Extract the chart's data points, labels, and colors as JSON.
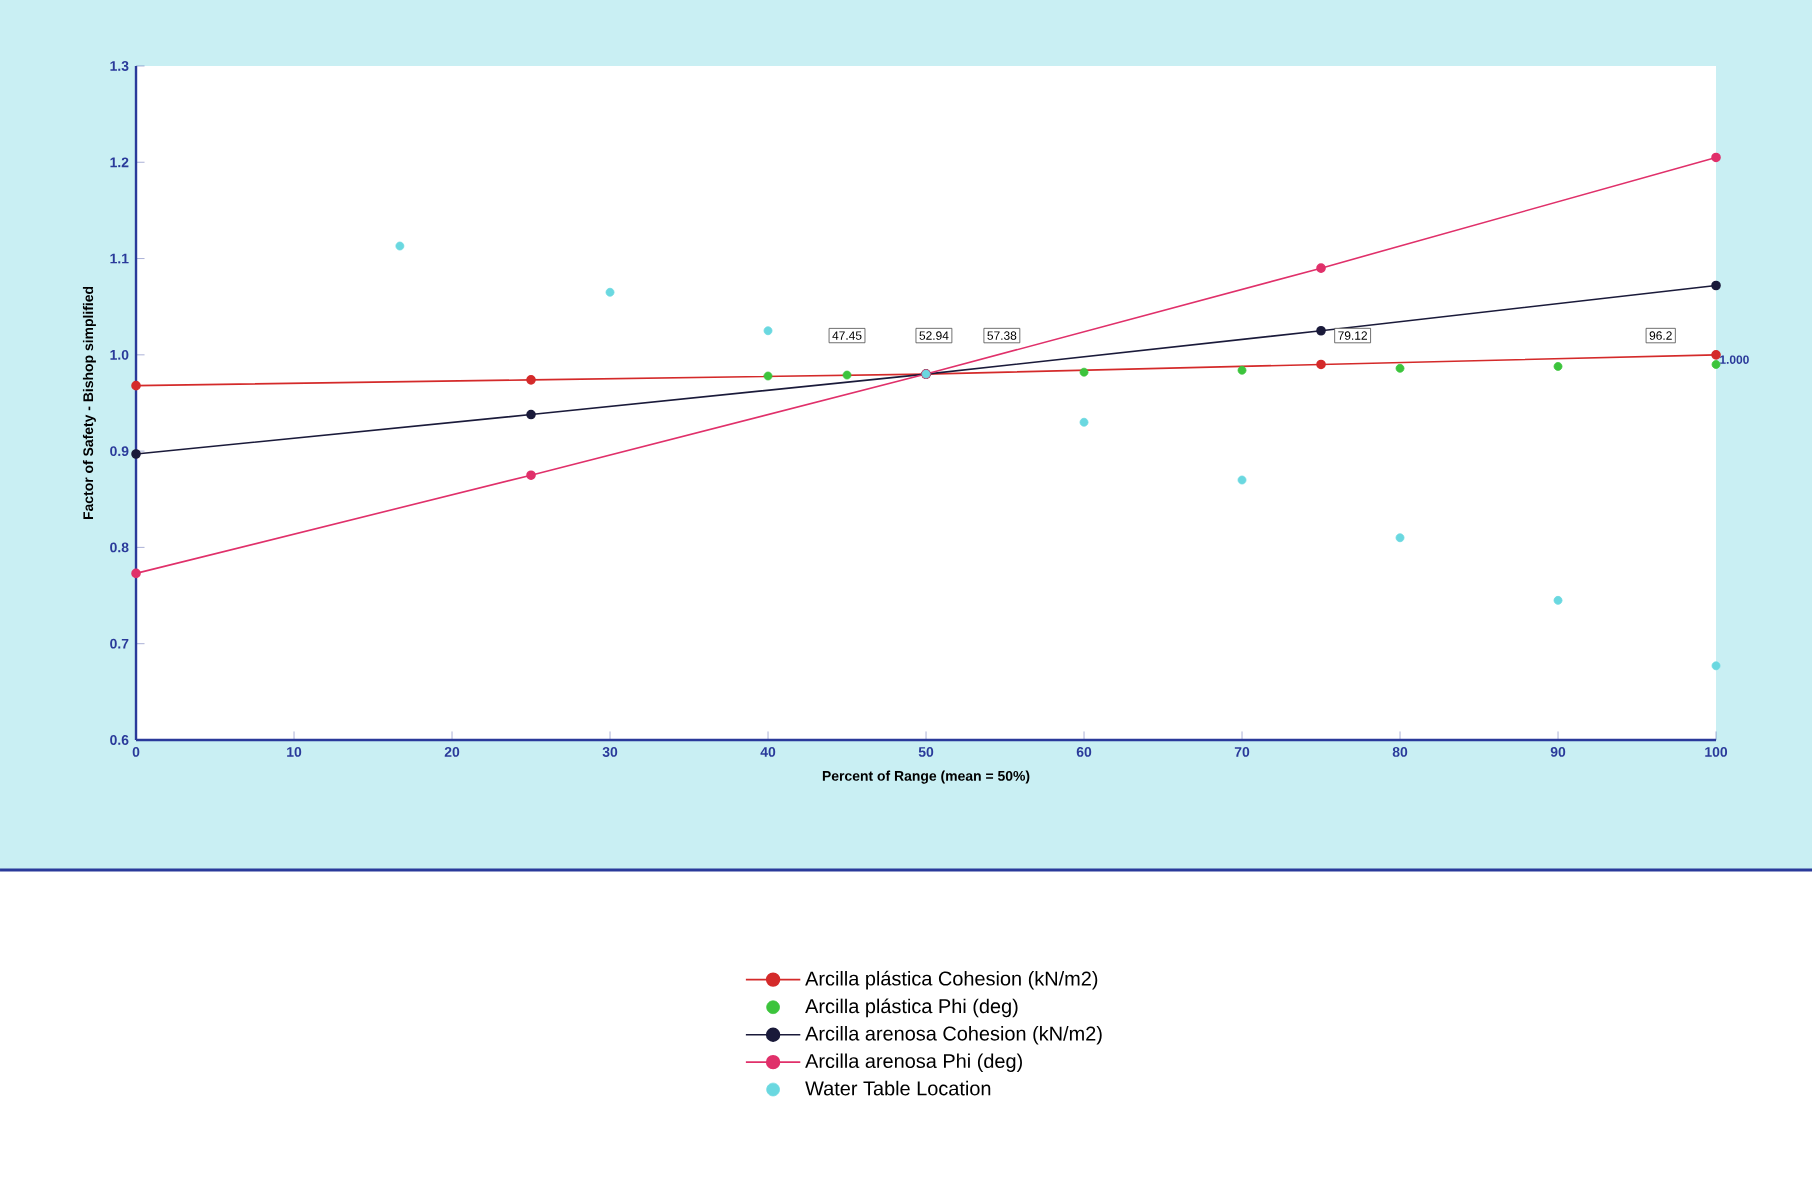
{
  "chart_data": {
    "type": "line",
    "xlabel": "Percent of Range (mean = 50%)",
    "ylabel": "Factor of Safety - Bishop simplified",
    "xlim": [
      0,
      100
    ],
    "xticks": [
      0,
      10,
      20,
      30,
      40,
      50,
      60,
      70,
      80,
      90,
      100
    ],
    "ylim": [
      0.6,
      1.3
    ],
    "yticks": [
      {
        "value": 0.6,
        "label": "0.6"
      },
      {
        "value": 0.7,
        "label": "0.7"
      },
      {
        "value": 0.8,
        "label": "0.8"
      },
      {
        "value": 0.9,
        "label": "0.9"
      },
      {
        "value": 1.0,
        "label": "1.0"
      },
      {
        "value": 1.1,
        "label": "1.1"
      },
      {
        "value": 1.2,
        "label": "1.2"
      },
      {
        "value": 1.3,
        "label": "1.3"
      }
    ],
    "marker": "circle",
    "legend": "bottom",
    "grid": false,
    "series": [
      {
        "name": "Arcilla plástica  Cohesion (kN/m2)",
        "type": "line",
        "color": "#d42a2a",
        "x": [
          0,
          25,
          50,
          75,
          100
        ],
        "values": [
          0.968,
          0.974,
          0.98,
          0.99,
          1.0
        ]
      },
      {
        "name": "Arcilla plástica  Phi (deg)",
        "type": "scatter",
        "color": "#3cc43c",
        "x": [
          40,
          45,
          60,
          70,
          80,
          90,
          100
        ],
        "values": [
          0.978,
          0.979,
          0.982,
          0.984,
          0.986,
          0.988,
          0.99
        ]
      },
      {
        "name": "Arcilla arenosa  Cohesion (kN/m2)",
        "type": "line",
        "color": "#1a1a3a",
        "x": [
          0,
          25,
          50,
          75,
          100
        ],
        "values": [
          0.897,
          0.938,
          0.98,
          1.025,
          1.072
        ]
      },
      {
        "name": "Arcilla arenosa  Phi (deg)",
        "type": "line",
        "color": "#e0306a",
        "x": [
          0,
          25,
          50,
          75,
          100
        ],
        "values": [
          0.773,
          0.875,
          0.98,
          1.09,
          1.205
        ]
      },
      {
        "name": "Water Table Location",
        "type": "scatter",
        "color": "#6ad8e0",
        "x": [
          16.7,
          30,
          40,
          50,
          60,
          70,
          80,
          90,
          100
        ],
        "values": [
          1.113,
          1.065,
          1.025,
          0.98,
          0.93,
          0.87,
          0.81,
          0.745,
          0.677
        ]
      }
    ],
    "annotations": [
      {
        "text": "47.45",
        "x": 45,
        "y": 1.02
      },
      {
        "text": "52.94",
        "x": 50.5,
        "y": 1.02
      },
      {
        "text": "57.38",
        "x": 54.8,
        "y": 1.02
      },
      {
        "text": "79.12",
        "x": 77,
        "y": 1.02
      },
      {
        "text": "96.2",
        "x": 96.5,
        "y": 1.02
      },
      {
        "text": "1.000",
        "x": 100,
        "y": 0.995
      }
    ]
  }
}
